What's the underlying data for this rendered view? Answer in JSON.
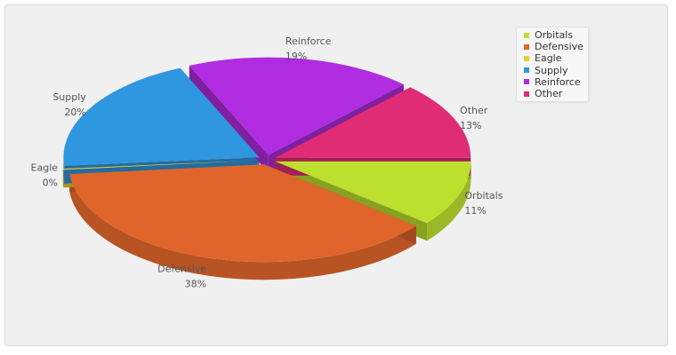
{
  "chart_data": {
    "type": "pie",
    "title": "",
    "categories": [
      "Orbitals",
      "Defensive",
      "Eagle",
      "Supply",
      "Reinforce",
      "Other"
    ],
    "values": [
      11,
      38,
      0,
      20,
      19,
      13
    ],
    "labels": [
      "11%",
      "38%",
      "0%",
      "20%",
      "19%",
      "13%"
    ],
    "colors": [
      "#bde02e",
      "#e0652b",
      "#e3d12c",
      "#2f96e0",
      "#b02ce0",
      "#e02c74"
    ],
    "exploded": true,
    "three_d": true,
    "legend_position": "top-right"
  }
}
